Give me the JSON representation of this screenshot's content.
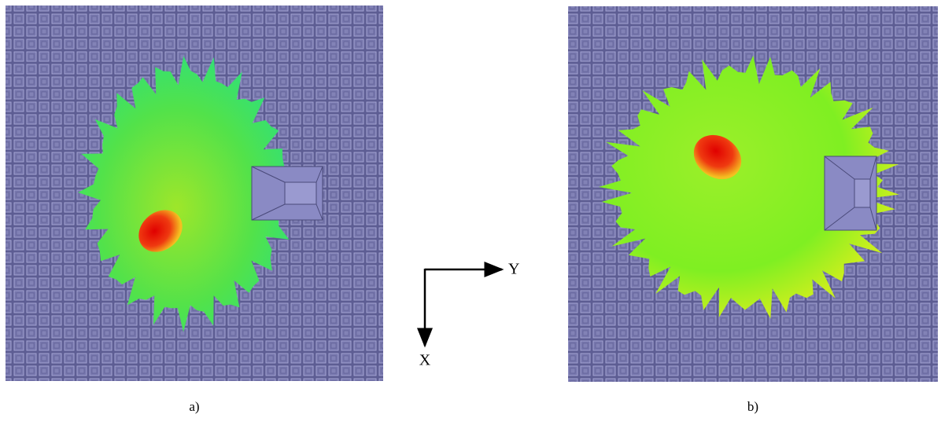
{
  "panels": [
    {
      "label": "a)"
    },
    {
      "label": "b)"
    }
  ],
  "axes": {
    "y_label": "Y",
    "x_label": "X"
  }
}
